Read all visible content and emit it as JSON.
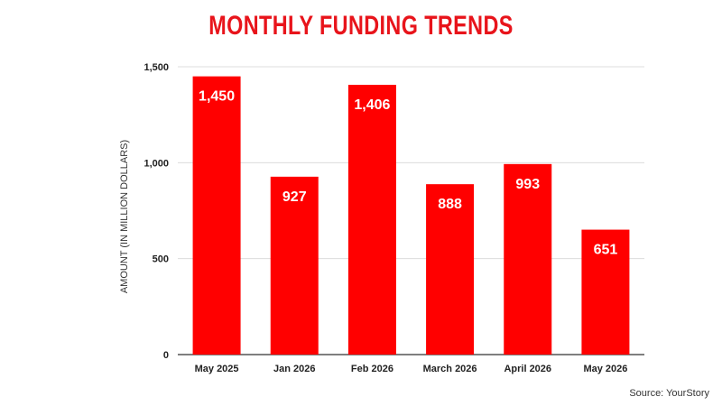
{
  "chart_data": {
    "type": "bar",
    "title": "MONTHLY FUNDING TRENDS",
    "ylabel": "AMOUNT (IN MILLION DOLLARS)",
    "xlabel": "",
    "categories": [
      "May 2025",
      "Jan 2026",
      "Feb 2026",
      "March 2026",
      "April 2026",
      "May 2026"
    ],
    "values": [
      1450,
      927,
      1406,
      888,
      993,
      651
    ],
    "value_labels": [
      "1,450",
      "927",
      "1,406",
      "888",
      "993",
      "651"
    ],
    "ylim": [
      0,
      1500
    ],
    "yticks": [
      0,
      500,
      1000,
      1500
    ],
    "ytick_labels": [
      "0",
      "500",
      "1,000",
      "1,500"
    ],
    "grid": true,
    "legend": "none"
  },
  "source": "Source: YourStory",
  "colors": {
    "bar": "#ff0000",
    "title": "#e8141b",
    "grid": "#dcdcdc",
    "bar_label": "#ffffff",
    "text": "#222222"
  }
}
